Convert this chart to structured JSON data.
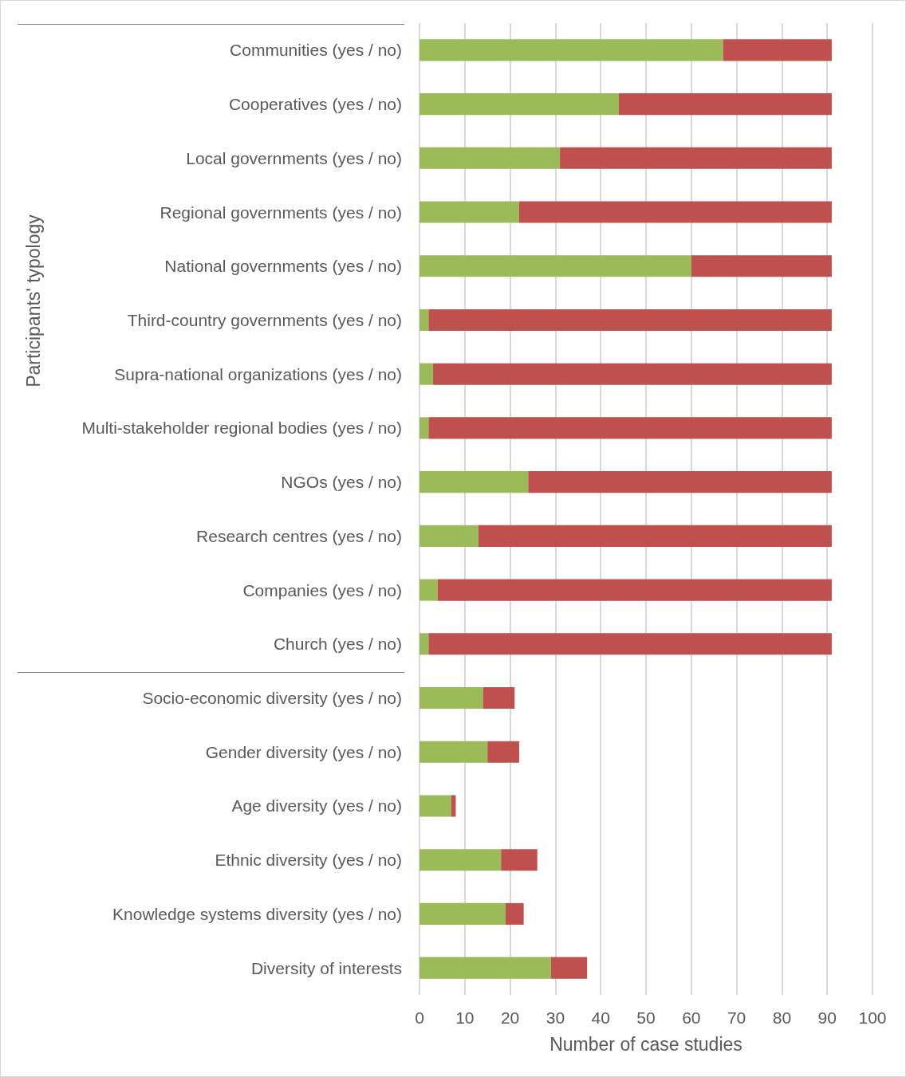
{
  "chart_data": {
    "type": "bar",
    "orientation": "horizontal",
    "stacked": true,
    "categories": [
      "Communities (yes / no)",
      "Cooperatives (yes / no)",
      "Local governments (yes / no)",
      "Regional governments (yes / no)",
      "National governments (yes / no)",
      "Third-country governments (yes / no)",
      "Supra-national organizations (yes / no)",
      "Multi-stakeholder regional bodies (yes / no)",
      "NGOs (yes / no)",
      "Research centres (yes / no)",
      "Companies (yes / no)",
      "Church (yes / no)",
      "Socio-economic diversity (yes / no)",
      "Gender diversity (yes / no)",
      "Age diversity (yes / no)",
      "Ethnic diversity (yes / no)",
      "Knowledge systems diversity (yes / no)",
      "Diversity of interests"
    ],
    "series": [
      {
        "color": "#9bbb59",
        "values": [
          67,
          44,
          31,
          22,
          60,
          2,
          3,
          2,
          24,
          13,
          4,
          2,
          14,
          15,
          7,
          18,
          19,
          29
        ]
      },
      {
        "color": "#c0504d",
        "values": [
          24,
          47,
          60,
          69,
          31,
          89,
          88,
          89,
          67,
          78,
          87,
          89,
          7,
          7,
          1,
          8,
          4,
          8
        ]
      }
    ],
    "xlabel": "Number of case studies",
    "ylabel": "Participants' typology",
    "xlim": [
      0,
      100
    ],
    "xticks": [
      0,
      10,
      20,
      30,
      40,
      50,
      60,
      70,
      80,
      90,
      100
    ],
    "grid": "x"
  }
}
